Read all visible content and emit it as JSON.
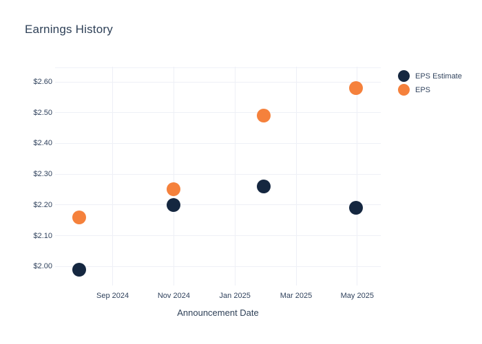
{
  "title": "Earnings History",
  "x_axis_title": "Announcement Date",
  "legend": {
    "items": [
      {
        "label": "EPS Estimate",
        "color": "#152740"
      },
      {
        "label": "EPS",
        "color": "#f5813c"
      }
    ]
  },
  "colors": {
    "background": "#ffffff",
    "gridline": "#eef0f6",
    "text": "#2f415c",
    "eps_estimate": "#152740",
    "eps_actual": "#f5813c"
  },
  "chart_data": {
    "type": "scatter",
    "title": "Earnings History",
    "xlabel": "Announcement Date",
    "ylabel": "",
    "grid": true,
    "legend_position": "right",
    "x_unit": "months since Aug 2024",
    "x_ticks": [
      {
        "label": "Sep 2024",
        "month": 1
      },
      {
        "label": "Nov 2024",
        "month": 3
      },
      {
        "label": "Jan 2025",
        "month": 5
      },
      {
        "label": "Mar 2025",
        "month": 7
      },
      {
        "label": "May 2025",
        "month": 9
      }
    ],
    "y_ticks": [
      {
        "label": "$2.00",
        "value": 2.0
      },
      {
        "label": "$2.10",
        "value": 2.1
      },
      {
        "label": "$2.20",
        "value": 2.2
      },
      {
        "label": "$2.30",
        "value": 2.3
      },
      {
        "label": "$2.40",
        "value": 2.4
      },
      {
        "label": "$2.50",
        "value": 2.5
      },
      {
        "label": "$2.60",
        "value": 2.6
      }
    ],
    "ylim": [
      1.94,
      2.65
    ],
    "series": [
      {
        "name": "EPS Estimate",
        "color": "#152740",
        "points": [
          {
            "x_month": -0.1,
            "approx_date": "Aug 2024",
            "value": 1.99
          },
          {
            "x_month": 3.0,
            "approx_date": "Nov 2024",
            "value": 2.2
          },
          {
            "x_month": 5.94,
            "approx_date": "Feb 2025",
            "value": 2.26
          },
          {
            "x_month": 8.97,
            "approx_date": "May 2025",
            "value": 2.19
          }
        ]
      },
      {
        "name": "EPS",
        "color": "#f5813c",
        "points": [
          {
            "x_month": -0.1,
            "approx_date": "Aug 2024",
            "value": 2.16
          },
          {
            "x_month": 3.0,
            "approx_date": "Nov 2024",
            "value": 2.25
          },
          {
            "x_month": 5.94,
            "approx_date": "Feb 2025",
            "value": 2.49
          },
          {
            "x_month": 8.97,
            "approx_date": "May 2025",
            "value": 2.58
          }
        ]
      }
    ]
  }
}
